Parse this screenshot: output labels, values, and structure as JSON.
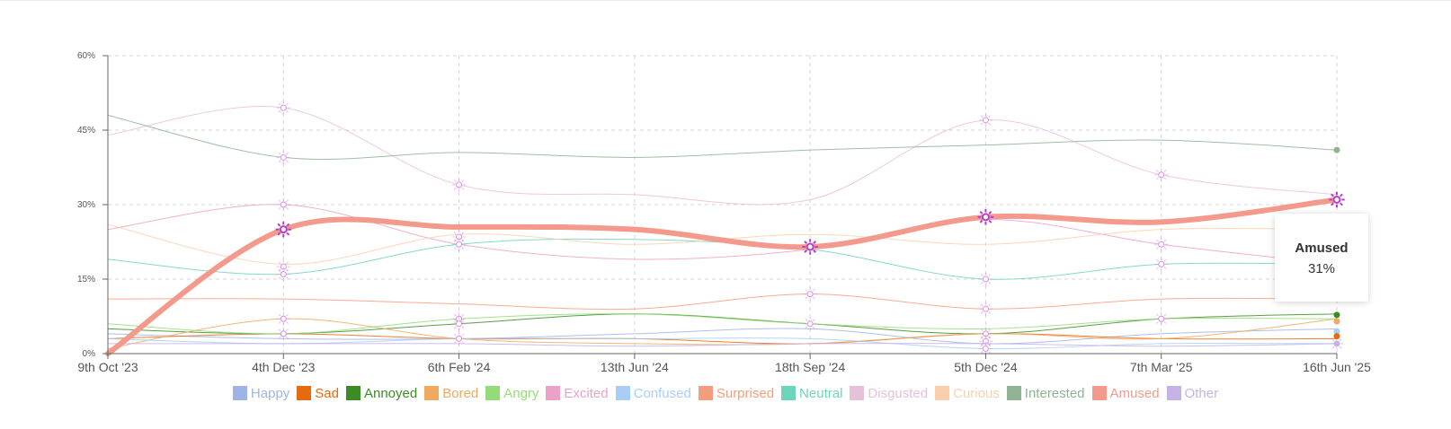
{
  "chart_data": {
    "type": "line",
    "title": "",
    "xlabel": "",
    "ylabel": "",
    "x_tick_labels": [
      "9th Oct '23",
      "4th Dec '23",
      "6th Feb '24",
      "13th Jun '24",
      "18th Sep '24",
      "5th Dec '24",
      "7th Mar '25",
      "16th Jun '25"
    ],
    "y_tick_labels": [
      "0%",
      "15%",
      "30%",
      "45%",
      "60%"
    ],
    "y_unit": "%",
    "ylim": [
      0,
      60
    ],
    "grid": true,
    "legend_position": "bottom",
    "highlighted_series": "Amused",
    "series": [
      {
        "name": "Happy",
        "color": "#9fb4e6",
        "values": [
          4,
          3,
          3,
          4,
          5,
          2,
          4,
          5
        ]
      },
      {
        "name": "Sad",
        "color": "#e86a10",
        "values": [
          3,
          4,
          3,
          3,
          2,
          4,
          3,
          3
        ]
      },
      {
        "name": "Annoyed",
        "color": "#3c8c25",
        "values": [
          5,
          4,
          6,
          8,
          6,
          4,
          7,
          8
        ]
      },
      {
        "name": "Bored",
        "color": "#f0a95f",
        "values": [
          1,
          7,
          3,
          2,
          2,
          4,
          3,
          7
        ]
      },
      {
        "name": "Angry",
        "color": "#94dc78",
        "values": [
          6,
          4,
          7,
          8,
          6,
          5,
          7,
          7
        ]
      },
      {
        "name": "Excited",
        "color": "#eca2c8",
        "values": [
          25,
          30,
          22,
          19,
          21,
          27,
          22,
          18
        ]
      },
      {
        "name": "Confused",
        "color": "#a8cdf7",
        "values": [
          3,
          2,
          3,
          3,
          3,
          1,
          2,
          2
        ]
      },
      {
        "name": "Surprised",
        "color": "#f49d7c",
        "values": [
          11,
          11,
          10,
          9,
          12,
          9,
          11,
          11
        ]
      },
      {
        "name": "Neutral",
        "color": "#6fd4bc",
        "values": [
          19,
          16,
          22,
          23,
          21,
          15,
          18,
          18
        ]
      },
      {
        "name": "Disgusted",
        "color": "#e7c0da",
        "values": [
          44,
          49.5,
          34,
          32,
          31,
          47,
          36,
          32
        ]
      },
      {
        "name": "Curious",
        "color": "#fad0ac",
        "values": [
          26,
          18,
          24,
          22,
          24,
          22,
          25,
          25
        ]
      },
      {
        "name": "Interested",
        "color": "#8fb393",
        "values": [
          48,
          39.5,
          40.5,
          39.5,
          41,
          42,
          43,
          41
        ]
      },
      {
        "name": "Amused",
        "color": "#f39a8c",
        "values": [
          0,
          25,
          25.5,
          25,
          21.5,
          27.5,
          26.5,
          31
        ]
      },
      {
        "name": "Other",
        "color": "#c5b3e6",
        "values": [
          2,
          2,
          2,
          1.5,
          2,
          2,
          1.5,
          2
        ]
      }
    ],
    "markers": [
      {
        "x_index": 1,
        "y": 49.5
      },
      {
        "x_index": 1,
        "y": 39.5
      },
      {
        "x_index": 1,
        "y": 30
      },
      {
        "x_index": 1,
        "y": 17.5
      },
      {
        "x_index": 1,
        "y": 16
      },
      {
        "x_index": 1,
        "y": 7
      },
      {
        "x_index": 1,
        "y": 4
      },
      {
        "x_index": 2,
        "y": 34
      },
      {
        "x_index": 2,
        "y": 23.5
      },
      {
        "x_index": 2,
        "y": 22
      },
      {
        "x_index": 2,
        "y": 7
      },
      {
        "x_index": 2,
        "y": 6
      },
      {
        "x_index": 2,
        "y": 3
      },
      {
        "x_index": 4,
        "y": 12
      },
      {
        "x_index": 4,
        "y": 6
      },
      {
        "x_index": 5,
        "y": 47
      },
      {
        "x_index": 5,
        "y": 15
      },
      {
        "x_index": 5,
        "y": 9
      },
      {
        "x_index": 5,
        "y": 4
      },
      {
        "x_index": 5,
        "y": 2.5
      },
      {
        "x_index": 5,
        "y": 1
      },
      {
        "x_index": 6,
        "y": 36
      },
      {
        "x_index": 6,
        "y": 22
      },
      {
        "x_index": 6,
        "y": 18
      },
      {
        "x_index": 6,
        "y": 7
      },
      {
        "x_index": 7,
        "y": 2
      }
    ],
    "end_dots": [
      {
        "series": "Interested",
        "y": 41
      },
      {
        "series": "Curious",
        "y": 25
      },
      {
        "series": "Neutral",
        "y": 18.5
      },
      {
        "series": "Surprised",
        "y": 11.5
      },
      {
        "series": "Annoyed",
        "y": 7.8
      },
      {
        "series": "Bored",
        "y": 6.5
      },
      {
        "series": "Confused",
        "y": 4.5
      },
      {
        "series": "Sad",
        "y": 3.5
      },
      {
        "series": "Other",
        "y": 2
      }
    ]
  },
  "tooltip": {
    "title": "Amused",
    "value": "31%"
  }
}
